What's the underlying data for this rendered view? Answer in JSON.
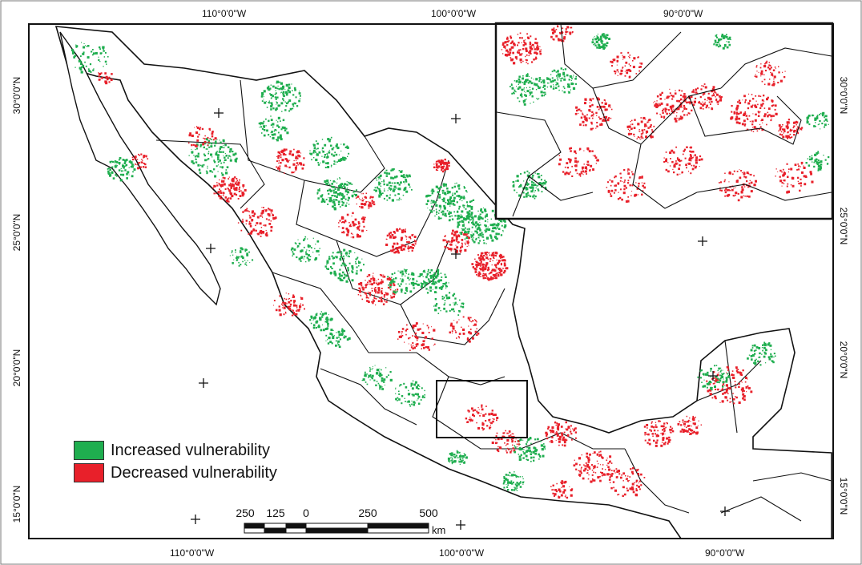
{
  "map": {
    "colors": {
      "increased": "#1fae4f",
      "decreased": "#e8202a",
      "border": "#111111",
      "background": "#ffffff"
    },
    "top_labels": [
      "110°0'0\"W",
      "100°0'0\"W",
      "90°0'0\"W"
    ],
    "bottom_labels": [
      "110°0'0\"W",
      "100°0'0\"W",
      "90°0'0\"W"
    ],
    "left_labels": [
      "30°0'0\"N",
      "25°0'0\"N",
      "20°0'0\"N",
      "15°0'0\"N"
    ],
    "right_labels": [
      "30°0'0\"N",
      "25°0'0\"N",
      "20°0'0\"N",
      "15°0'0\"N"
    ],
    "legend": {
      "increased": "Increased vulnerability",
      "decreased": "Decreased vulnerability"
    },
    "scalebar": {
      "labels": [
        "250",
        "125",
        "0",
        "250",
        "500"
      ],
      "unit": "km"
    },
    "inset_icon": "zoomed-region-inset"
  }
}
